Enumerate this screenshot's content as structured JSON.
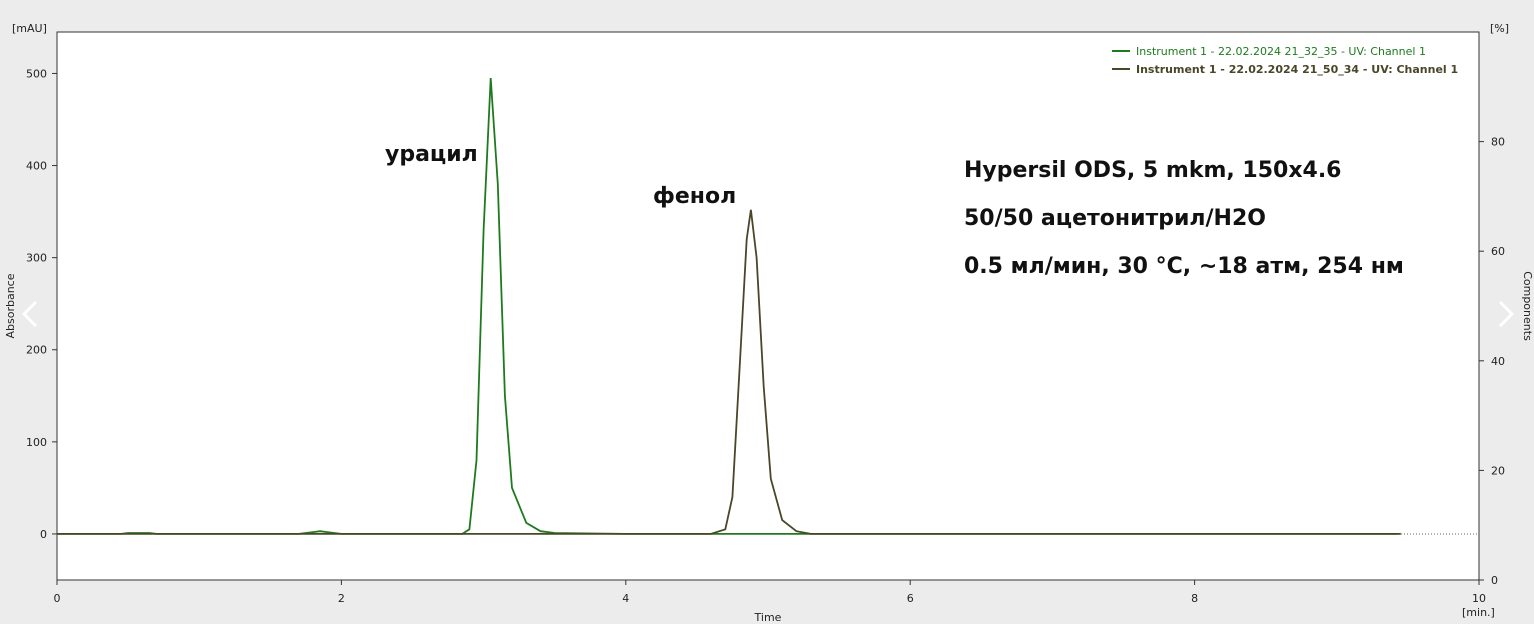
{
  "chart_data": {
    "type": "line",
    "y_unit": "[mAU]",
    "y2_unit": "[%]",
    "y_label": "Absorbance",
    "y2_label": "Components",
    "x_label": "Time",
    "x_unit": "[min.]",
    "xlim": [
      0,
      10
    ],
    "xticks": [
      0,
      2,
      4,
      6,
      8,
      10
    ],
    "ylim": [
      -50,
      545
    ],
    "yticks": [
      0,
      100,
      200,
      300,
      400,
      500
    ],
    "y2lim": [
      0,
      100
    ],
    "y2ticks": [
      0,
      20,
      40,
      60,
      80
    ],
    "legend": "top-right",
    "series": [
      {
        "name": "Instrument 1 - 22.02.2024 21_32_35 - UV: Channel 1",
        "color": "#1f7a1f",
        "x": [
          0,
          0.45,
          0.5,
          0.65,
          0.7,
          1.7,
          1.8,
          1.85,
          1.9,
          2.0,
          2.85,
          2.9,
          2.95,
          3.0,
          3.05,
          3.1,
          3.15,
          3.2,
          3.3,
          3.4,
          3.5,
          4.0,
          9.43
        ],
        "values": [
          0,
          0,
          1,
          1,
          0,
          0,
          2,
          3,
          2,
          0,
          0,
          5,
          80,
          330,
          495,
          380,
          150,
          50,
          12,
          3,
          1,
          0,
          0
        ]
      },
      {
        "name": "Instrument 1 - 22.02.2024 21_50_34 - UV: Channel 1",
        "color": "#4a4628",
        "x": [
          0,
          4.6,
          4.7,
          4.75,
          4.8,
          4.85,
          4.88,
          4.92,
          4.97,
          5.02,
          5.1,
          5.2,
          5.3,
          9.45
        ],
        "values": [
          0,
          0,
          5,
          40,
          180,
          320,
          352,
          300,
          160,
          60,
          15,
          3,
          0,
          0
        ]
      }
    ],
    "annotations": [
      "урацил",
      "фенол"
    ],
    "notes": [
      "Hypersil ODS, 5 mkm, 150x4.6",
      "50/50 ацетонитрил/H2O",
      "0.5 мл/мин, 30 °C, ~18 атм, 254 нм"
    ]
  }
}
